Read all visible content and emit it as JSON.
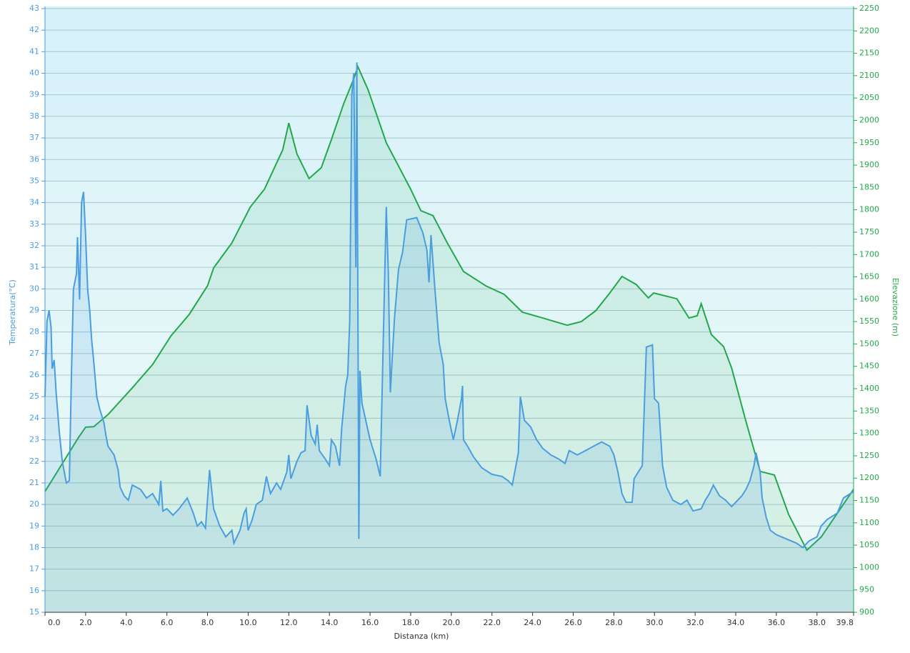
{
  "chart_data": {
    "type": "line",
    "x_label": "Distanza  (km)",
    "y_label": "Temperatura(°C)",
    "y2_label": "Elevazione (m)",
    "xlim": [
      0,
      39.8
    ],
    "xticks": [
      {
        "value": 0,
        "label": "0.0"
      },
      {
        "value": 2,
        "label": "2.0"
      },
      {
        "value": 4,
        "label": "4.0"
      },
      {
        "value": 6,
        "label": "6.0"
      },
      {
        "value": 8,
        "label": "8.0"
      },
      {
        "value": 10,
        "label": "10.0"
      },
      {
        "value": 12,
        "label": "12.0"
      },
      {
        "value": 14,
        "label": "14.0"
      },
      {
        "value": 16,
        "label": "16.0"
      },
      {
        "value": 18,
        "label": "18.0"
      },
      {
        "value": 20,
        "label": "20.0"
      },
      {
        "value": 22,
        "label": "22.0"
      },
      {
        "value": 24,
        "label": "24.0"
      },
      {
        "value": 26,
        "label": "26.0"
      },
      {
        "value": 28,
        "label": "28.0"
      },
      {
        "value": 30,
        "label": "30.0"
      },
      {
        "value": 32,
        "label": "32.0"
      },
      {
        "value": 34,
        "label": "34.0"
      },
      {
        "value": 36,
        "label": "36.0"
      },
      {
        "value": 38,
        "label": "38.0"
      },
      39.8
    ],
    "ylim": [
      15,
      43
    ],
    "yticks": [
      15,
      16,
      17,
      18,
      19,
      20,
      21,
      22,
      23,
      24,
      25,
      26,
      27,
      28,
      29,
      30,
      31,
      32,
      33,
      34,
      35,
      36,
      37,
      38,
      39,
      40,
      41,
      42,
      43
    ],
    "y2lim": [
      900,
      2250
    ],
    "y2ticks": [
      900,
      950,
      1000,
      1050,
      1100,
      1150,
      1200,
      1250,
      1300,
      1350,
      1400,
      1450,
      1500,
      1550,
      1600,
      1650,
      1700,
      1750,
      1800,
      1850,
      1900,
      1950,
      2000,
      2050,
      2100,
      2150,
      2200,
      2250
    ],
    "grid": true,
    "series": [
      {
        "name": "Temperatura",
        "color": "#4a9de0",
        "axis": "y",
        "x": [
          0,
          0.1,
          0.2,
          0.3,
          0.35,
          0.45,
          0.55,
          0.7,
          0.85,
          1.05,
          1.2,
          1.3,
          1.4,
          1.55,
          1.6,
          1.7,
          1.8,
          1.9,
          2.0,
          2.1,
          2.2,
          2.3,
          2.4,
          2.55,
          2.7,
          2.9,
          3.0,
          3.1,
          3.4,
          3.6,
          3.7,
          3.9,
          4.1,
          4.3,
          4.7,
          5.0,
          5.3,
          5.6,
          5.7,
          5.8,
          6.0,
          6.3,
          6.6,
          7.0,
          7.3,
          7.5,
          7.7,
          7.9,
          8.1,
          8.3,
          8.6,
          8.9,
          9.2,
          9.3,
          9.6,
          9.8,
          9.9,
          10.0,
          10.2,
          10.4,
          10.7,
          10.9,
          11.1,
          11.4,
          11.6,
          11.9,
          12.0,
          12.1,
          12.4,
          12.6,
          12.8,
          12.9,
          13.1,
          13.3,
          13.4,
          13.5,
          13.8,
          14.0,
          14.1,
          14.3,
          14.5,
          14.6,
          14.8,
          14.9,
          15.0,
          15.1,
          15.2,
          15.3,
          15.35,
          15.45,
          15.5,
          15.6,
          16.0,
          16.3,
          16.5,
          16.8,
          16.9,
          17.0,
          17.2,
          17.4,
          17.6,
          17.8,
          18.3,
          18.6,
          18.8,
          18.9,
          19.0,
          19.2,
          19.4,
          19.6,
          19.7,
          19.9,
          20.1,
          20.3,
          20.5,
          20.55,
          20.6,
          20.8,
          21.1,
          21.5,
          22.0,
          22.5,
          22.8,
          23.0,
          23.3,
          23.4,
          23.6,
          23.9,
          24.2,
          24.5,
          24.9,
          25.3,
          25.6,
          25.8,
          26.2,
          26.6,
          27.0,
          27.4,
          27.8,
          28.0,
          28.2,
          28.4,
          28.6,
          28.9,
          29.0,
          29.4,
          29.6,
          29.9,
          30.0,
          30.2,
          30.4,
          30.6,
          30.9,
          31.3,
          31.6,
          31.9,
          32.3,
          32.5,
          32.7,
          32.9,
          33.2,
          33.5,
          33.8,
          34.0,
          34.3,
          34.5,
          34.7,
          34.9,
          35.0,
          35.2,
          35.3,
          35.5,
          35.7,
          36.0,
          36.5,
          37.0,
          37.3,
          37.6,
          38.0,
          38.2,
          38.5,
          39.0,
          39.3,
          39.8
        ],
        "values": [
          25.0,
          28.5,
          29,
          28.2,
          26.3,
          26.7,
          25.2,
          23.4,
          22,
          21,
          21.1,
          26,
          30,
          30.7,
          32.4,
          29.5,
          34,
          34.5,
          32.4,
          30,
          29,
          27.6,
          26.6,
          25,
          24.4,
          23.8,
          23.2,
          22.7,
          22.3,
          21.6,
          20.8,
          20.4,
          20.2,
          20.9,
          20.7,
          20.3,
          20.5,
          20,
          21.1,
          19.7,
          19.8,
          19.5,
          19.8,
          20.3,
          19.6,
          19,
          19.2,
          18.9,
          21.6,
          19.8,
          19,
          18.5,
          18.8,
          18.2,
          18.8,
          19.6,
          19.8,
          18.8,
          19.3,
          20.0,
          20.2,
          21.3,
          20.5,
          21,
          20.7,
          21.5,
          22.3,
          21.2,
          22.0,
          22.4,
          22.5,
          24.6,
          23.2,
          22.8,
          23.7,
          22.5,
          22.1,
          21.8,
          23,
          22.7,
          21.8,
          23.5,
          25.5,
          26,
          28.5,
          39,
          40,
          31,
          40.5,
          18.4,
          26.2,
          24.7,
          23,
          22.1,
          21.3,
          33.8,
          30.7,
          25.2,
          28.6,
          30.9,
          31.7,
          33.2,
          33.3,
          32.6,
          31.8,
          30.3,
          32.5,
          29.9,
          27.5,
          26.5,
          24.9,
          23.9,
          23.0,
          23.9,
          24.9,
          25.5,
          23,
          22.7,
          22.2,
          21.7,
          21.4,
          21.3,
          21.1,
          20.9,
          22.4,
          25,
          23.9,
          23.6,
          23.0,
          22.6,
          22.3,
          22.1,
          21.9,
          22.5,
          22.3,
          22.5,
          22.7,
          22.9,
          22.7,
          22.3,
          21.5,
          20.5,
          20.1,
          20.1,
          21.2,
          21.8,
          27.3,
          27.4,
          24.9,
          24.7,
          21.8,
          20.8,
          20.2,
          20,
          20.2,
          19.7,
          19.8,
          20.2,
          20.5,
          20.9,
          20.4,
          20.2,
          19.9,
          20.1,
          20.4,
          20.7,
          21.1,
          21.8,
          22.4,
          21.5,
          20.3,
          19.4,
          18.8,
          18.6,
          18.4,
          18.2,
          18.0,
          18.3,
          18.5,
          19.0,
          19.3,
          19.6,
          20.3,
          20.6
        ]
      },
      {
        "name": "Elevazione",
        "color": "#22a84a",
        "axis": "y2",
        "x": [
          0,
          1.65,
          2.0,
          2.4,
          3.1,
          4.3,
          5.3,
          6.2,
          7.1,
          8.0,
          8.3,
          9.2,
          10.1,
          10.8,
          11.7,
          12.0,
          12.4,
          13.0,
          13.6,
          14.1,
          14.7,
          15.2,
          15.4,
          15.9,
          16.8,
          18.0,
          18.5,
          19.1,
          19.8,
          20.6,
          21.7,
          22.6,
          23.5,
          24.5,
          25.7,
          26.4,
          27.1,
          27.8,
          28.4,
          29.1,
          29.7,
          29.96,
          31.1,
          31.7,
          32.1,
          32.3,
          32.8,
          33.4,
          33.8,
          34.5,
          35.2,
          35.9,
          36.6,
          37.5,
          38.2,
          39.8
        ],
        "values": [
          1170,
          1291,
          1314,
          1315,
          1342,
          1402,
          1454,
          1518,
          1566,
          1630,
          1670,
          1726,
          1806,
          1846,
          1934,
          1994,
          1925,
          1870,
          1894,
          1957,
          2037,
          2093,
          2120,
          2069,
          1950,
          1846,
          1798,
          1787,
          1726,
          1662,
          1630,
          1611,
          1571,
          1558,
          1542,
          1550,
          1574,
          1614,
          1651,
          1633,
          1603,
          1614,
          1601,
          1558,
          1563,
          1590,
          1521,
          1494,
          1446,
          1327,
          1215,
          1207,
          1119,
          1039,
          1068,
          1175
        ]
      }
    ]
  }
}
